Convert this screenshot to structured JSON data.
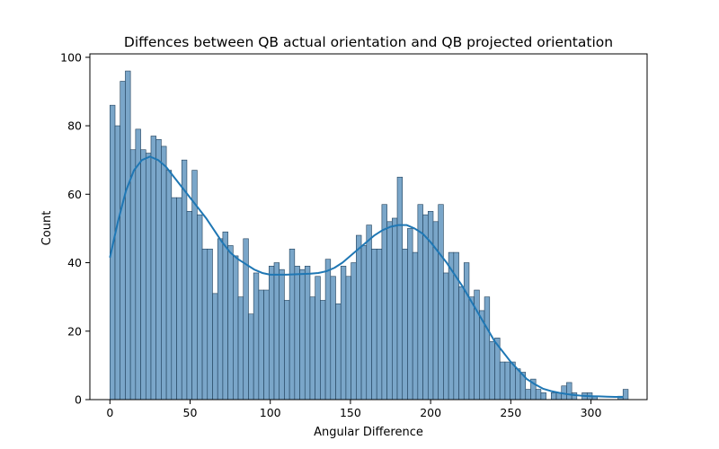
{
  "chart_data": {
    "type": "bar",
    "title": "Diffences between QB actual orientation and QB projected orientation",
    "xlabel": "Angular Difference",
    "ylabel": "Count",
    "xlim": [
      -12.5,
      335
    ],
    "ylim": [
      0,
      101
    ],
    "xticks": [
      0,
      50,
      100,
      150,
      200,
      250,
      300
    ],
    "yticks": [
      0,
      20,
      40,
      60,
      80,
      100
    ],
    "grid": false,
    "legend": "none",
    "bin_start": 0,
    "bin_width": 3.2,
    "bar_values": [
      86,
      80,
      93,
      96,
      73,
      79,
      73,
      72,
      77,
      76,
      74,
      67,
      59,
      59,
      70,
      55,
      67,
      54,
      44,
      44,
      31,
      47,
      49,
      45,
      42,
      30,
      47,
      25,
      37,
      32,
      32,
      39,
      40,
      38,
      29,
      44,
      39,
      38,
      39,
      30,
      36,
      29,
      41,
      36,
      28,
      39,
      36,
      40,
      48,
      45,
      51,
      44,
      44,
      57,
      52,
      53,
      65,
      44,
      50,
      43,
      57,
      54,
      55,
      52,
      57,
      37,
      43,
      43,
      33,
      40,
      30,
      32,
      26,
      30,
      17,
      18,
      11,
      11,
      11,
      9,
      8,
      3,
      6,
      3,
      2,
      0,
      2,
      2,
      4,
      5,
      2,
      0,
      2,
      2,
      1,
      0,
      0,
      0,
      0,
      1,
      3
    ],
    "kde": {
      "x": [
        0,
        5,
        10,
        15,
        20,
        25,
        30,
        35,
        40,
        45,
        50,
        55,
        60,
        65,
        70,
        75,
        80,
        85,
        90,
        95,
        100,
        105,
        110,
        115,
        120,
        125,
        130,
        135,
        140,
        145,
        150,
        155,
        160,
        165,
        170,
        175,
        180,
        185,
        190,
        195,
        200,
        205,
        210,
        215,
        220,
        225,
        230,
        235,
        240,
        245,
        250,
        255,
        260,
        265,
        270,
        275,
        280,
        285,
        290,
        295,
        300,
        305,
        310,
        315,
        320
      ],
      "y": [
        41.5,
        52,
        61,
        67,
        70,
        71,
        70,
        68,
        65,
        62,
        59,
        56,
        53,
        49.5,
        46,
        43,
        41,
        39.5,
        38,
        37,
        36.5,
        36.5,
        36.5,
        36.6,
        36.7,
        36.8,
        37,
        37.5,
        38.5,
        40,
        42,
        44,
        46,
        48,
        49.5,
        50.5,
        51,
        51,
        50,
        48.5,
        46,
        43,
        40,
        36.5,
        33,
        29,
        25,
        21,
        17,
        14,
        11,
        8.5,
        6,
        4.5,
        3.2,
        2.5,
        2,
        1.6,
        1.3,
        1.1,
        1,
        0.95,
        0.85,
        0.8,
        0.8
      ]
    },
    "bar_color": "#7aa6c9",
    "bar_edge_color": "#1f3f5a",
    "line_color": "#1f77b4"
  }
}
